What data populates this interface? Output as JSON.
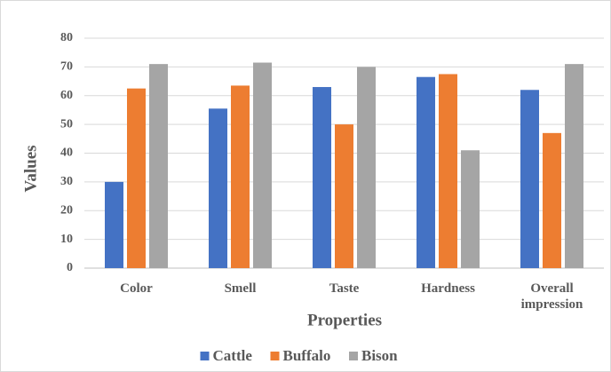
{
  "chart_data": {
    "type": "bar",
    "x_label": "Properties",
    "y_label": "Values",
    "categories": [
      "Color",
      "Smell",
      "Taste",
      "Hardness",
      "Overall impression"
    ],
    "series": [
      {
        "name": "Cattle",
        "color": "#4472c4",
        "values": [
          30,
          55.5,
          63,
          66.5,
          62
        ]
      },
      {
        "name": "Buffalo",
        "color": "#ed7d31",
        "values": [
          62.5,
          63.5,
          50,
          67.5,
          47
        ]
      },
      {
        "name": "Bison",
        "color": "#a5a5a5",
        "values": [
          71,
          71.5,
          70,
          41,
          71
        ]
      }
    ],
    "ylim": [
      0,
      80
    ],
    "yticks": [
      0,
      10,
      20,
      30,
      40,
      50,
      60,
      70,
      80
    ],
    "grid": true,
    "legend": "bottom"
  }
}
